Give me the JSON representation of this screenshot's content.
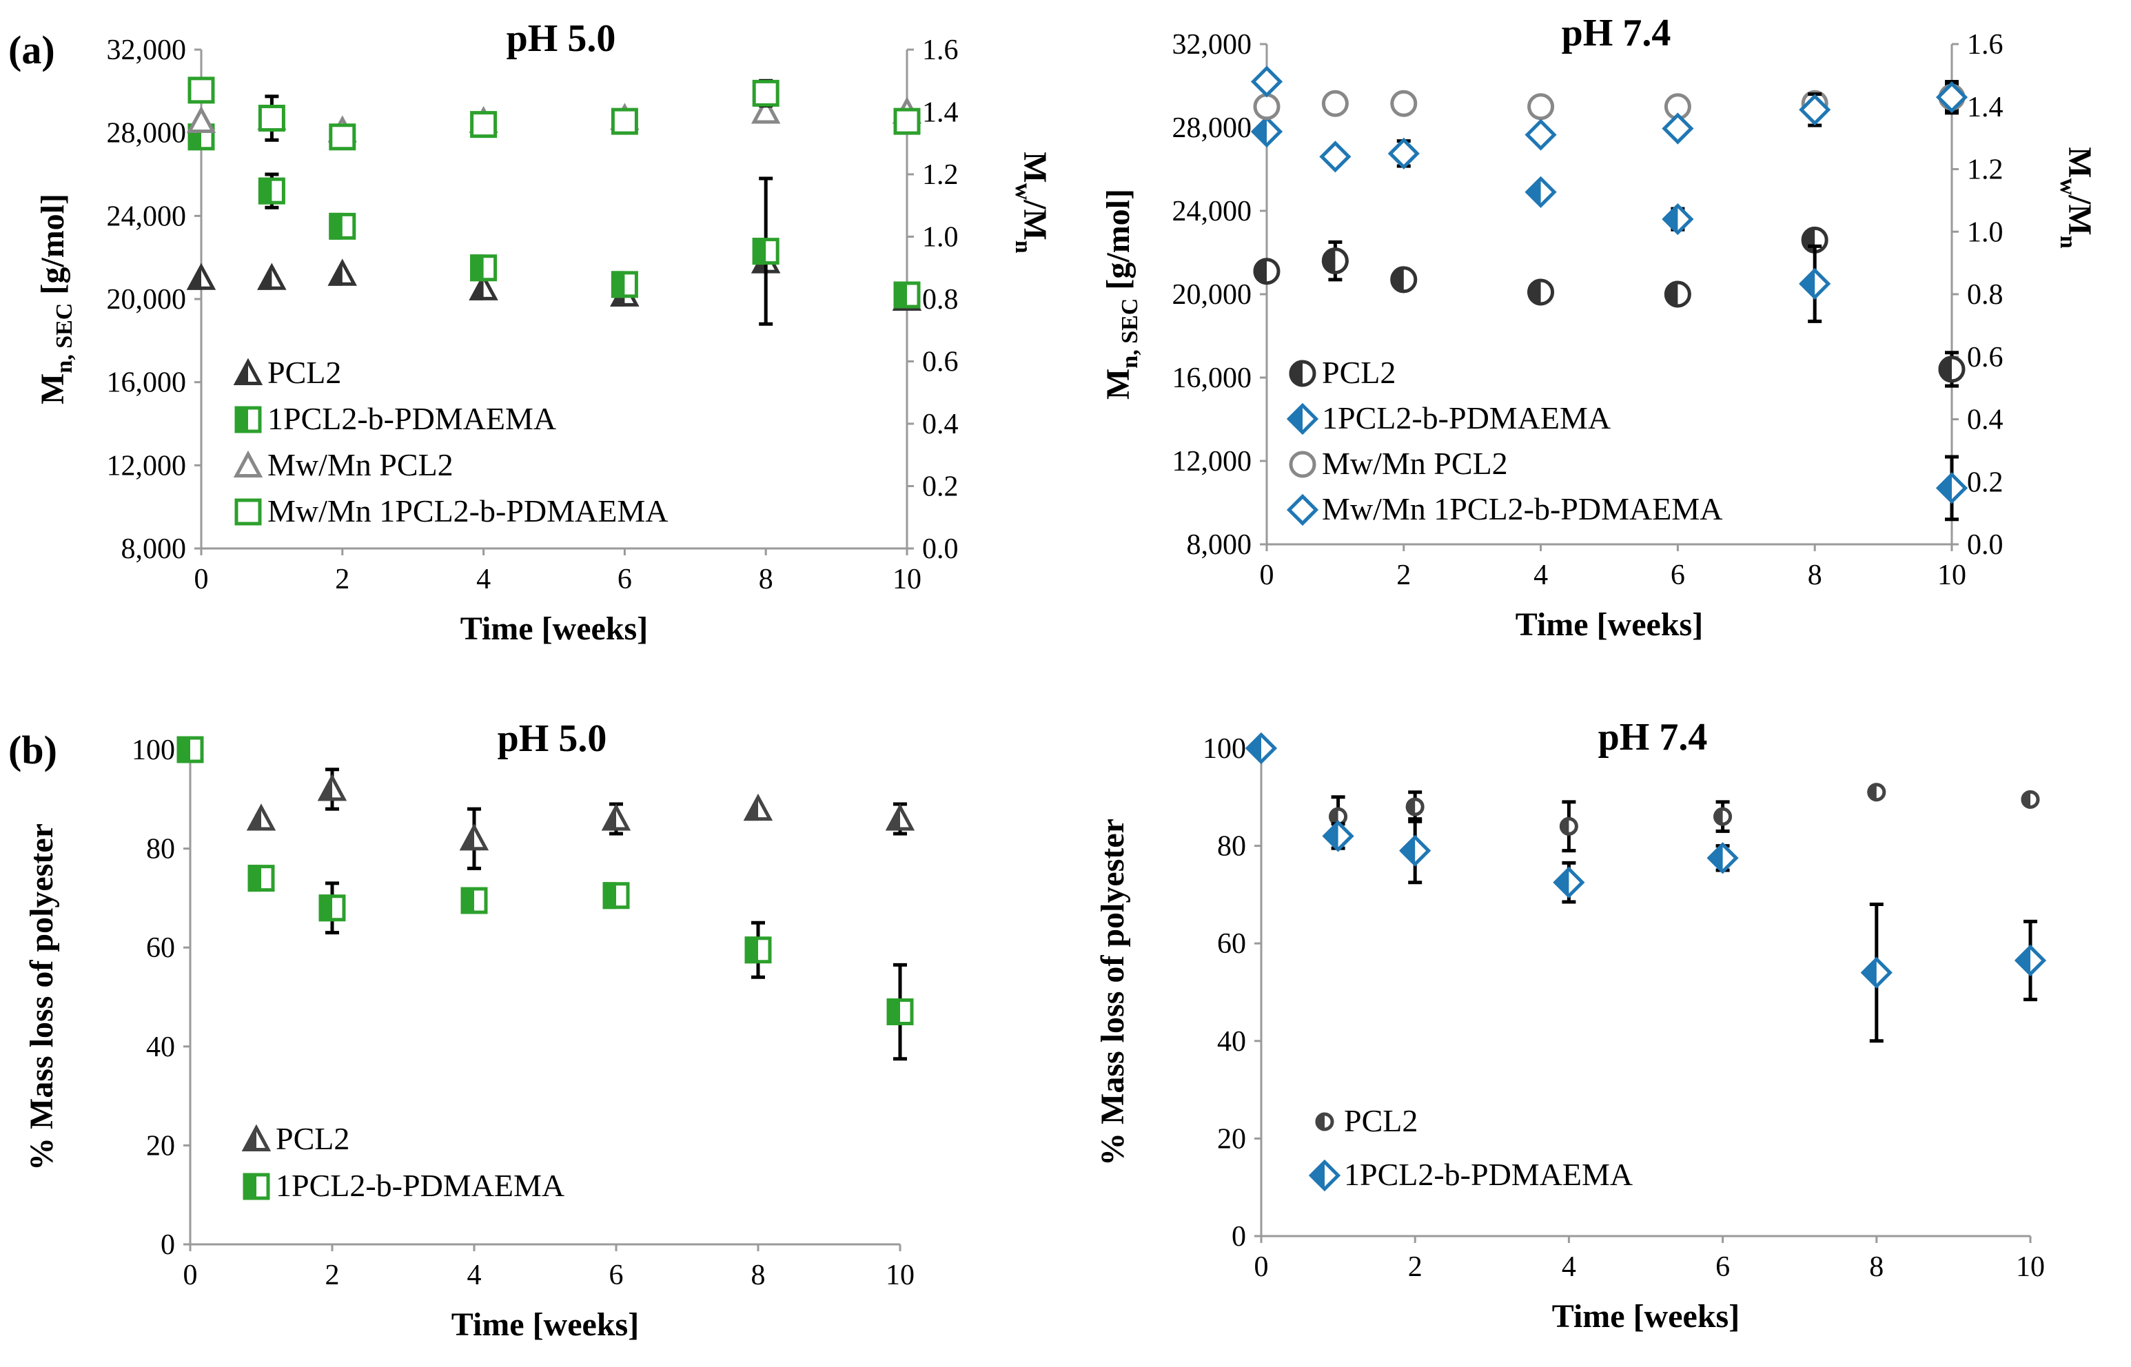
{
  "panel_labels": [
    "(a)",
    "(b)"
  ],
  "chart_data": [
    {
      "type": "scatter",
      "panel": "(a)",
      "title": "pH 5.0",
      "xlabel": "Time [weeks]",
      "ylabel": "Mn, SEC [g/mol]",
      "y2label": "Mw/Mn",
      "xlim": [
        0,
        10
      ],
      "ylim": [
        8000,
        32000
      ],
      "y2lim": [
        0.0,
        1.6
      ],
      "x_ticks": [
        "0",
        "2",
        "4",
        "6",
        "8",
        "10"
      ],
      "y_ticks": [
        "8,000",
        "12,000",
        "16,000",
        "20,000",
        "24,000",
        "28,000",
        "32,000"
      ],
      "y2_ticks": [
        "0.0",
        "0.2",
        "0.4",
        "0.6",
        "0.8",
        "1.0",
        "1.2",
        "1.4",
        "1.6"
      ],
      "legend": [
        "PCL2",
        "1PCL2-b-PDMAEMA",
        "Mw/Mn PCL2",
        "Mw/Mn 1PCL2-b-PDMAEMA"
      ],
      "legend_position": "bottom-left",
      "series": [
        {
          "name": "PCL2",
          "axis": "left",
          "marker": "tri-half",
          "color": "#333333",
          "x": [
            0,
            1,
            2,
            4,
            6,
            8,
            10
          ],
          "y": [
            21000,
            21000,
            21200,
            20500,
            20200,
            21800,
            20000
          ],
          "err": [
            0,
            0,
            0,
            0,
            0,
            0,
            0
          ]
        },
        {
          "name": "1PCL2-b-PDMAEMA",
          "axis": "left",
          "marker": "sq-half",
          "color": "#2ca02c",
          "x": [
            0,
            1,
            2,
            4,
            6,
            8,
            10
          ],
          "y": [
            27800,
            25200,
            23500,
            21500,
            20700,
            22300,
            20200
          ],
          "err": [
            0,
            800,
            0,
            0,
            0,
            3500,
            0
          ]
        },
        {
          "name": "Mw/Mn PCL2",
          "axis": "right",
          "marker": "tri-open",
          "color": "#888888",
          "x": [
            0,
            1,
            2,
            4,
            6,
            8,
            10
          ],
          "y": [
            1.37,
            1.38,
            1.34,
            1.37,
            1.38,
            1.4,
            1.4
          ],
          "err": [
            0,
            0,
            0,
            0,
            0,
            0,
            0
          ]
        },
        {
          "name": "Mw/Mn 1PCL2-b-PDMAEMA",
          "axis": "right",
          "marker": "sq-open",
          "color": "#2ca02c",
          "x": [
            0,
            1,
            2,
            4,
            6,
            8,
            10
          ],
          "y": [
            1.47,
            1.38,
            1.32,
            1.36,
            1.37,
            1.46,
            1.37
          ],
          "err": [
            0,
            0.07,
            0.02,
            0,
            0,
            0.04,
            0
          ]
        }
      ]
    },
    {
      "type": "scatter",
      "panel": "(a)",
      "title": "pH 7.4",
      "xlabel": "Time [weeks]",
      "ylabel": "Mn, SEC [g/mol]",
      "y2label": "Mw/Mn",
      "xlim": [
        0,
        10
      ],
      "ylim": [
        8000,
        32000
      ],
      "y2lim": [
        0.0,
        1.6
      ],
      "x_ticks": [
        "0",
        "2",
        "4",
        "6",
        "8",
        "10"
      ],
      "y_ticks": [
        "8,000",
        "12,000",
        "16,000",
        "20,000",
        "24,000",
        "28,000",
        "32,000"
      ],
      "y2_ticks": [
        "0.0",
        "0.2",
        "0.4",
        "0.6",
        "0.8",
        "1.0",
        "1.2",
        "1.4",
        "1.6"
      ],
      "legend": [
        "PCL2",
        "1PCL2-b-PDMAEMA",
        "Mw/Mn PCL2",
        "Mw/Mn 1PCL2-b-PDMAEMA"
      ],
      "legend_position": "bottom-left",
      "series": [
        {
          "name": "PCL2",
          "axis": "left",
          "marker": "circ-half",
          "color": "#333333",
          "x": [
            0,
            1,
            2,
            4,
            6,
            8,
            10
          ],
          "y": [
            21100,
            21600,
            20700,
            20100,
            20000,
            22600,
            16400
          ],
          "err": [
            0,
            900,
            0,
            0,
            0,
            0,
            800
          ]
        },
        {
          "name": "1PCL2-b-PDMAEMA",
          "axis": "left",
          "marker": "dia-half",
          "color": "#1f77b4",
          "x": [
            0,
            4,
            6,
            8,
            10
          ],
          "y": [
            27800,
            24900,
            23600,
            20500,
            10700
          ],
          "err": [
            0,
            0,
            500,
            1800,
            1500
          ]
        },
        {
          "name": "Mw/Mn PCL2",
          "axis": "right",
          "marker": "circ-open",
          "color": "#888888",
          "x": [
            0,
            1,
            2,
            4,
            6,
            8,
            10
          ],
          "y": [
            1.4,
            1.41,
            1.41,
            1.4,
            1.4,
            1.41,
            1.43
          ],
          "err": [
            0,
            0.03,
            0,
            0,
            0,
            0.03,
            0.04
          ]
        },
        {
          "name": "Mw/Mn 1PCL2-b-PDMAEMA",
          "axis": "right",
          "marker": "dia-open",
          "color": "#1f77b4",
          "x": [
            0,
            1,
            2,
            4,
            6,
            8,
            10
          ],
          "y": [
            1.48,
            1.24,
            1.25,
            1.31,
            1.33,
            1.39,
            1.43
          ],
          "err": [
            0,
            0,
            0.04,
            0,
            0,
            0.05,
            0.05
          ]
        }
      ]
    },
    {
      "type": "scatter",
      "panel": "(b)",
      "title": "pH 5.0",
      "xlabel": "Time [weeks]",
      "ylabel": "% Mass loss of polyester",
      "xlim": [
        0,
        10
      ],
      "ylim": [
        0,
        100
      ],
      "x_ticks": [
        "0",
        "2",
        "4",
        "6",
        "8",
        "10"
      ],
      "y_ticks": [
        "0",
        "20",
        "40",
        "60",
        "80",
        "100"
      ],
      "legend": [
        "PCL2",
        "1PCL2-b-PDMAEMA"
      ],
      "legend_position": "bottom-left",
      "series": [
        {
          "name": "PCL2",
          "marker": "tri-half",
          "color": "#444444",
          "x": [
            1,
            2,
            4,
            6,
            8,
            10
          ],
          "y": [
            86,
            92,
            82,
            86,
            88,
            86
          ],
          "err": [
            0,
            4,
            6,
            3,
            0,
            3
          ]
        },
        {
          "name": "1PCL2-b-PDMAEMA",
          "marker": "sq-half",
          "color": "#2ca02c",
          "x": [
            0,
            1,
            2,
            4,
            6,
            8,
            10
          ],
          "y": [
            100,
            74,
            68,
            69.5,
            70.5,
            59.5,
            47
          ],
          "err": [
            0,
            0,
            5,
            2,
            1.5,
            5.5,
            9.5
          ]
        }
      ]
    },
    {
      "type": "scatter",
      "panel": "(b)",
      "title": "pH 7.4",
      "xlabel": "Time [weeks]",
      "ylabel": "% Mass loss of polyester",
      "xlim": [
        0,
        10
      ],
      "ylim": [
        0,
        100
      ],
      "x_ticks": [
        "0",
        "2",
        "4",
        "6",
        "8",
        "10"
      ],
      "y_ticks": [
        "0",
        "20",
        "40",
        "60",
        "80",
        "100"
      ],
      "legend": [
        "PCL2",
        "1PCL2-b-PDMAEMA"
      ],
      "legend_position": "bottom-left",
      "series": [
        {
          "name": "PCL2",
          "marker": "circ-half-small",
          "color": "#444444",
          "x": [
            1,
            2,
            4,
            6,
            8,
            10
          ],
          "y": [
            86,
            88,
            84,
            86,
            91,
            89.5
          ],
          "err": [
            4,
            3,
            5,
            3,
            0,
            0
          ]
        },
        {
          "name": "1PCL2-b-PDMAEMA",
          "marker": "dia-half",
          "color": "#1f77b4",
          "x": [
            0,
            1,
            2,
            4,
            6,
            8,
            10
          ],
          "y": [
            100,
            82,
            79,
            72.5,
            77.5,
            54,
            56.5
          ],
          "err": [
            0,
            2.5,
            6.5,
            4,
            2.5,
            14,
            8
          ]
        }
      ]
    }
  ]
}
